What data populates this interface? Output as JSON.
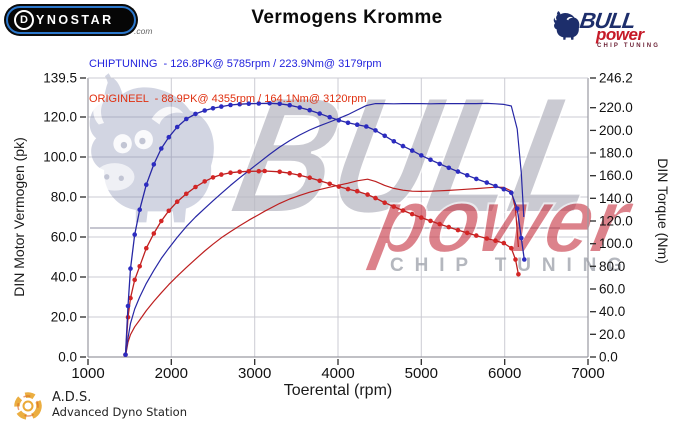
{
  "header": {
    "title": "Vermogens Kromme",
    "dynostar": {
      "d": "D",
      "rest": "YNOSTAR",
      "suffix": ".com"
    },
    "bullpower": {
      "line1": "BULL",
      "line2": "power",
      "line3": "CHIP TUNING"
    }
  },
  "legend": {
    "chiptuning": "CHIPTUNING  - 126.8PK@ 5785rpm / 223.9Nm@ 3179rpm",
    "origineel": "ORIGINEEL  - 88.9PK@ 4355rpm / 164.1Nm@ 3120rpm",
    "chiptuning_color": "#2222dd",
    "origineel_color": "#e03010"
  },
  "footer": {
    "abbr": "A.D.S.",
    "name": "Advanced Dyno Station"
  },
  "watermarks": {
    "bull_text": "BULL",
    "power_text": "power",
    "chip_text": "CHIP TUNING"
  },
  "chart_data": {
    "type": "line",
    "title": "Vermogens Kromme",
    "xlabel": "Toerental (rpm)",
    "ylabel_left": "DIN Motor Vermogen (pk)",
    "ylabel_right": "DIN Torque (Nm)",
    "x_range": [
      1000,
      7000
    ],
    "left_range": [
      0,
      139.5
    ],
    "right_range": [
      0,
      246.2
    ],
    "grid": true,
    "x_ticks": {
      "values": [
        1000,
        2000,
        3000,
        4000,
        5000,
        6000,
        7000
      ],
      "labels": [
        "1000",
        "2000",
        "3000",
        "4000",
        "5000",
        "6000",
        "7000"
      ]
    },
    "left_ticks": {
      "values": [
        139.5,
        120,
        100,
        80,
        60,
        40,
        20,
        0
      ],
      "labels": [
        "139.5",
        "120.0",
        "100.0",
        "80.0",
        "60.0",
        "40.0",
        "20.0",
        "0.0"
      ]
    },
    "right_ticks": {
      "values": [
        246.2,
        220,
        200,
        180,
        160,
        140,
        120,
        100,
        80,
        60,
        40,
        20,
        0
      ],
      "labels": [
        "246.2",
        "220.0",
        "200.0",
        "180.0",
        "160.0",
        "140.0",
        "120.0",
        "100.0",
        "80.0",
        "60.0",
        "40.0",
        "20.0",
        "0.0"
      ]
    },
    "colors": {
      "chiptuning": "#2727a5",
      "chiptuning_marker": "#2c2cc0",
      "origineel": "#bd1f1f",
      "origineel_marker": "#d32525",
      "grid": "#cbcbd3",
      "axis": "#9a9aa2",
      "tick": "#2a2a2a",
      "label": "#111111"
    },
    "peaks": {
      "chiptuning": {
        "power_pk": 126.8,
        "power_rpm": 5785,
        "torque_nm": 223.9,
        "torque_rpm": 3179
      },
      "origineel": {
        "power_pk": 88.9,
        "power_rpm": 4355,
        "torque_nm": 164.1,
        "torque_rpm": 3120
      }
    },
    "series": [
      {
        "name": "ORIGINEEL power pk",
        "axis": "left",
        "style": "line",
        "color": "#bd1f1f",
        "points": [
          [
            1450,
            0.4
          ],
          [
            1480,
            7.4
          ],
          [
            1510,
            11.2
          ],
          [
            1560,
            15.1
          ],
          [
            1620,
            18.5
          ],
          [
            1700,
            23.2
          ],
          [
            1790,
            27.8
          ],
          [
            1880,
            32.1
          ],
          [
            1970,
            36.2
          ],
          [
            2070,
            40.4
          ],
          [
            2180,
            44.7
          ],
          [
            2290,
            48.9
          ],
          [
            2400,
            53.0
          ],
          [
            2500,
            56.4
          ],
          [
            2600,
            59.6
          ],
          [
            2710,
            62.7
          ],
          [
            2820,
            65.6
          ],
          [
            2930,
            68.4
          ],
          [
            3050,
            71.2
          ],
          [
            3120,
            72.9
          ],
          [
            3300,
            76.8
          ],
          [
            3420,
            79.0
          ],
          [
            3540,
            80.8
          ],
          [
            3660,
            82.4
          ],
          [
            3780,
            83.7
          ],
          [
            3900,
            84.9
          ],
          [
            4010,
            85.9
          ],
          [
            4120,
            86.9
          ],
          [
            4230,
            88.1
          ],
          [
            4355,
            88.9
          ],
          [
            4450,
            87.8
          ],
          [
            4560,
            85.8
          ],
          [
            4670,
            84.3
          ],
          [
            4780,
            83.4
          ],
          [
            4890,
            82.9
          ],
          [
            5000,
            82.8
          ],
          [
            5110,
            82.9
          ],
          [
            5220,
            83.1
          ],
          [
            5330,
            83.3
          ],
          [
            5440,
            83.6
          ],
          [
            5550,
            83.9
          ],
          [
            5660,
            84.2
          ],
          [
            5785,
            84.6
          ],
          [
            5890,
            84.9
          ],
          [
            5990,
            84.8
          ],
          [
            6080,
            83.0
          ],
          [
            6130,
            74.0
          ],
          [
            6165,
            55.0
          ]
        ]
      },
      {
        "name": "CHIPTUNING power pk",
        "axis": "left",
        "style": "line",
        "color": "#2727a5",
        "points": [
          [
            1450,
            0.5
          ],
          [
            1480,
            9.5
          ],
          [
            1510,
            16.8
          ],
          [
            1560,
            24.0
          ],
          [
            1620,
            30.0
          ],
          [
            1700,
            36.8
          ],
          [
            1790,
            43.3
          ],
          [
            1880,
            49.3
          ],
          [
            1970,
            54.4
          ],
          [
            2070,
            59.8
          ],
          [
            2180,
            65.2
          ],
          [
            2290,
            70.0
          ],
          [
            2400,
            74.3
          ],
          [
            2500,
            78.1
          ],
          [
            2600,
            81.8
          ],
          [
            2710,
            85.8
          ],
          [
            2820,
            89.6
          ],
          [
            2930,
            93.2
          ],
          [
            3050,
            97.1
          ],
          [
            3179,
            101.3
          ],
          [
            3300,
            105.0
          ],
          [
            3420,
            108.2
          ],
          [
            3540,
            111.0
          ],
          [
            3660,
            113.5
          ],
          [
            3780,
            115.6
          ],
          [
            3900,
            117.5
          ],
          [
            4010,
            119.3
          ],
          [
            4120,
            121.2
          ],
          [
            4230,
            123.5
          ],
          [
            4340,
            125.7
          ],
          [
            4450,
            126.7
          ],
          [
            4560,
            126.7
          ],
          [
            4670,
            126.6
          ],
          [
            4780,
            126.7
          ],
          [
            4890,
            126.7
          ],
          [
            5000,
            126.7
          ],
          [
            5110,
            126.6
          ],
          [
            5220,
            126.7
          ],
          [
            5330,
            126.7
          ],
          [
            5440,
            126.7
          ],
          [
            5550,
            126.7
          ],
          [
            5660,
            126.7
          ],
          [
            5785,
            126.8
          ],
          [
            5890,
            126.6
          ],
          [
            5990,
            126.3
          ],
          [
            6080,
            125.5
          ],
          [
            6150,
            114.0
          ],
          [
            6200,
            92.0
          ],
          [
            6230,
            70.0
          ]
        ]
      },
      {
        "name": "ORIGINEEL torque Nm",
        "axis": "right",
        "style": "dotted-line",
        "color": "#bd1f1f",
        "marker": "#d32525",
        "points": [
          [
            1450,
            2
          ],
          [
            1480,
            35
          ],
          [
            1510,
            52
          ],
          [
            1560,
            68
          ],
          [
            1620,
            80
          ],
          [
            1700,
            96
          ],
          [
            1790,
            109
          ],
          [
            1880,
            120
          ],
          [
            1970,
            129
          ],
          [
            2070,
            137
          ],
          [
            2180,
            144
          ],
          [
            2290,
            150
          ],
          [
            2400,
            155
          ],
          [
            2500,
            158.5
          ],
          [
            2600,
            161
          ],
          [
            2710,
            162.6
          ],
          [
            2820,
            163.4
          ],
          [
            2930,
            163.9
          ],
          [
            3050,
            164.0
          ],
          [
            3120,
            164.1
          ],
          [
            3300,
            163.4
          ],
          [
            3420,
            162.2
          ],
          [
            3540,
            160.4
          ],
          [
            3660,
            158.2
          ],
          [
            3780,
            155.5
          ],
          [
            3900,
            152.8
          ],
          [
            4010,
            150.4
          ],
          [
            4120,
            148.2
          ],
          [
            4230,
            146.3
          ],
          [
            4355,
            143.3
          ],
          [
            4450,
            140.2
          ],
          [
            4560,
            136.2
          ],
          [
            4670,
            132.7
          ],
          [
            4780,
            129.3
          ],
          [
            4890,
            126.1
          ],
          [
            5000,
            123.0
          ],
          [
            5110,
            120.1
          ],
          [
            5220,
            117.3
          ],
          [
            5330,
            114.6
          ],
          [
            5440,
            112.0
          ],
          [
            5550,
            109.5
          ],
          [
            5660,
            107.1
          ],
          [
            5785,
            104.6
          ],
          [
            5890,
            102.6
          ],
          [
            5990,
            100.5
          ],
          [
            6080,
            96.0
          ],
          [
            6130,
            86.0
          ],
          [
            6165,
            73.0
          ]
        ]
      },
      {
        "name": "CHIPTUNING torque Nm",
        "axis": "right",
        "style": "dotted-line",
        "color": "#2727a5",
        "marker": "#2c2cc0",
        "points": [
          [
            1450,
            2
          ],
          [
            1480,
            45
          ],
          [
            1510,
            78
          ],
          [
            1560,
            108
          ],
          [
            1620,
            130
          ],
          [
            1700,
            152
          ],
          [
            1790,
            170
          ],
          [
            1880,
            184
          ],
          [
            1970,
            194
          ],
          [
            2070,
            203
          ],
          [
            2180,
            210
          ],
          [
            2290,
            214.5
          ],
          [
            2400,
            217.5
          ],
          [
            2500,
            219.5
          ],
          [
            2600,
            221
          ],
          [
            2710,
            222.4
          ],
          [
            2820,
            223.1
          ],
          [
            2930,
            223.5
          ],
          [
            3050,
            223.7
          ],
          [
            3179,
            223.9
          ],
          [
            3300,
            223.4
          ],
          [
            3420,
            222.2
          ],
          [
            3540,
            220.2
          ],
          [
            3660,
            217.8
          ],
          [
            3780,
            214.8
          ],
          [
            3900,
            211.6
          ],
          [
            4010,
            208.9
          ],
          [
            4120,
            206.7
          ],
          [
            4230,
            205.0
          ],
          [
            4340,
            203.4
          ],
          [
            4450,
            200.0
          ],
          [
            4560,
            195.2
          ],
          [
            4670,
            190.3
          ],
          [
            4780,
            186.1
          ],
          [
            4890,
            182.1
          ],
          [
            5000,
            177.9
          ],
          [
            5110,
            174.0
          ],
          [
            5220,
            170.4
          ],
          [
            5330,
            167.0
          ],
          [
            5440,
            163.6
          ],
          [
            5550,
            160.3
          ],
          [
            5660,
            157.2
          ],
          [
            5785,
            153.9
          ],
          [
            5890,
            150.9
          ],
          [
            5990,
            148.1
          ],
          [
            6080,
            145.0
          ],
          [
            6150,
            131.0
          ],
          [
            6200,
            105.0
          ],
          [
            6235,
            86.0
          ]
        ]
      }
    ]
  }
}
